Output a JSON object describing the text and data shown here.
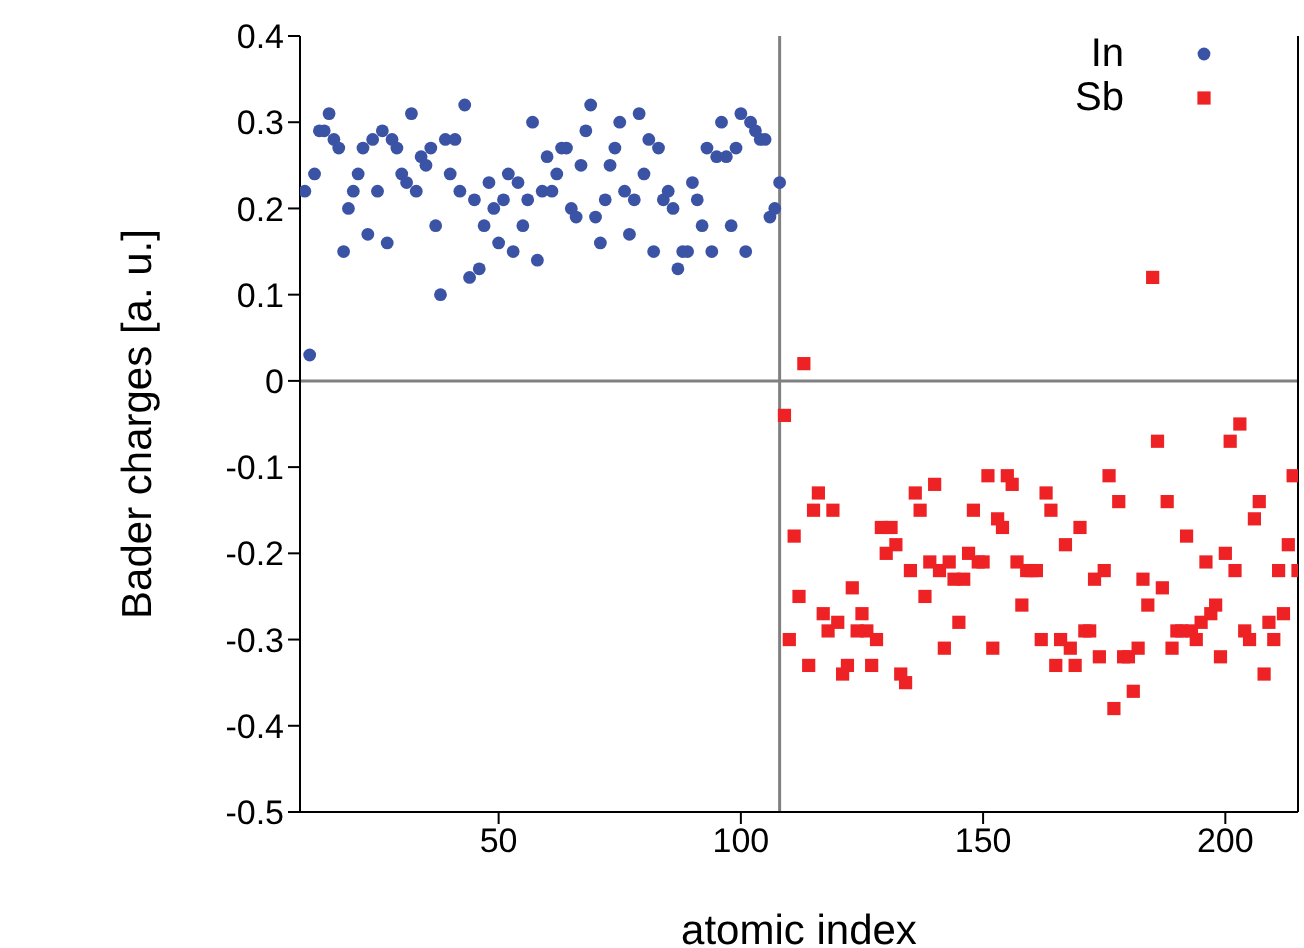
{
  "chart_data": {
    "type": "scatter",
    "xlabel": "atomic index",
    "ylabel": "Bader charges [a. u.]",
    "xlim": [
      9,
      215
    ],
    "xticks": [
      50,
      100,
      150,
      200
    ],
    "ylim": [
      -0.5,
      0.4
    ],
    "yticks": [
      -0.5,
      -0.4,
      -0.3,
      -0.2,
      -0.1,
      0,
      0.1,
      0.2,
      0.3,
      0.4
    ],
    "grid": false,
    "legend": "top right",
    "ref_lines": [
      {
        "axis": "x",
        "value": 108,
        "color": "#808080"
      },
      {
        "axis": "y",
        "value": 0,
        "color": "#808080"
      }
    ],
    "series": [
      {
        "name": "In",
        "color": "#3a53a4",
        "marker": "circle",
        "x": [
          10,
          11,
          12,
          13,
          14,
          15,
          16,
          17,
          18,
          19,
          20,
          21,
          22,
          23,
          24,
          25,
          26,
          27,
          28,
          29,
          30,
          31,
          32,
          33,
          34,
          35,
          36,
          37,
          38,
          39,
          40,
          41,
          42,
          43,
          44,
          45,
          46,
          47,
          48,
          49,
          50,
          51,
          52,
          53,
          54,
          55,
          56,
          57,
          58,
          59,
          60,
          61,
          62,
          63,
          64,
          65,
          66,
          67,
          68,
          69,
          70,
          71,
          72,
          73,
          74,
          75,
          76,
          77,
          78,
          79,
          80,
          81,
          82,
          83,
          84,
          85,
          86,
          87,
          88,
          89,
          90,
          91,
          92,
          93,
          94,
          95,
          96,
          97,
          98,
          99,
          100,
          101,
          102,
          103,
          104,
          105,
          106,
          107,
          108
        ],
        "values": [
          0.22,
          0.03,
          0.24,
          0.29,
          0.29,
          0.31,
          0.28,
          0.27,
          0.15,
          0.2,
          0.22,
          0.24,
          0.27,
          0.17,
          0.28,
          0.22,
          0.29,
          0.16,
          0.28,
          0.27,
          0.24,
          0.23,
          0.31,
          0.22,
          0.26,
          0.25,
          0.27,
          0.18,
          0.1,
          0.28,
          0.24,
          0.28,
          0.22,
          0.32,
          0.12,
          0.21,
          0.13,
          0.18,
          0.23,
          0.2,
          0.16,
          0.21,
          0.24,
          0.15,
          0.23,
          0.18,
          0.21,
          0.3,
          0.14,
          0.22,
          0.26,
          0.22,
          0.24,
          0.27,
          0.27,
          0.2,
          0.19,
          0.25,
          0.29,
          0.32,
          0.19,
          0.16,
          0.21,
          0.25,
          0.27,
          0.3,
          0.22,
          0.17,
          0.21,
          0.31,
          0.24,
          0.28,
          0.15,
          0.27,
          0.21,
          0.22,
          0.2,
          0.13,
          0.15,
          0.15,
          0.23,
          0.21,
          0.18,
          0.27,
          0.15,
          0.26,
          0.3,
          0.26,
          0.18,
          0.27,
          0.31,
          0.15,
          0.3,
          0.29,
          0.28,
          0.28,
          0.19,
          0.2,
          0.23
        ]
      },
      {
        "name": "Sb",
        "color": "#ee2224",
        "marker": "square",
        "x": [
          109,
          110,
          111,
          112,
          113,
          114,
          115,
          116,
          117,
          118,
          119,
          120,
          121,
          122,
          123,
          124,
          125,
          126,
          127,
          128,
          129,
          130,
          131,
          132,
          133,
          134,
          135,
          136,
          137,
          138,
          139,
          140,
          141,
          142,
          143,
          144,
          145,
          146,
          147,
          148,
          149,
          150,
          151,
          152,
          153,
          154,
          155,
          156,
          157,
          158,
          159,
          160,
          161,
          162,
          163,
          164,
          165,
          166,
          167,
          168,
          169,
          170,
          171,
          172,
          173,
          174,
          175,
          176,
          177,
          178,
          179,
          180,
          181,
          182,
          183,
          184,
          185,
          186,
          187,
          188,
          189,
          190,
          191,
          192,
          193,
          194,
          195,
          196,
          197,
          198,
          199,
          200,
          201,
          202,
          203,
          204,
          205,
          206,
          207,
          208,
          209,
          210,
          211,
          212,
          213,
          214,
          215
        ],
        "values": [
          -0.04,
          -0.3,
          -0.18,
          -0.25,
          0.02,
          -0.33,
          -0.15,
          -0.13,
          -0.27,
          -0.29,
          -0.15,
          -0.28,
          -0.34,
          -0.33,
          -0.24,
          -0.29,
          -0.27,
          -0.29,
          -0.33,
          -0.3,
          -0.17,
          -0.2,
          -0.17,
          -0.19,
          -0.34,
          -0.35,
          -0.22,
          -0.13,
          -0.15,
          -0.25,
          -0.21,
          -0.12,
          -0.22,
          -0.31,
          -0.21,
          -0.23,
          -0.28,
          -0.23,
          -0.2,
          -0.15,
          -0.21,
          -0.21,
          -0.11,
          -0.31,
          -0.16,
          -0.17,
          -0.11,
          -0.12,
          -0.21,
          -0.26,
          -0.22,
          -0.22,
          -0.22,
          -0.3,
          -0.13,
          -0.15,
          -0.33,
          -0.3,
          -0.19,
          -0.31,
          -0.33,
          -0.17,
          -0.29,
          -0.29,
          -0.23,
          -0.32,
          -0.22,
          -0.11,
          -0.38,
          -0.14,
          -0.32,
          -0.32,
          -0.36,
          -0.31,
          -0.23,
          -0.26,
          0.12,
          -0.07,
          -0.24,
          -0.14,
          -0.31,
          -0.29,
          -0.29,
          -0.18,
          -0.29,
          -0.3,
          -0.28,
          -0.21,
          -0.27,
          -0.26,
          -0.32,
          -0.2,
          -0.07,
          -0.22,
          -0.05,
          -0.29,
          -0.3,
          -0.16,
          -0.14,
          -0.34,
          -0.28,
          -0.3,
          -0.22,
          -0.27,
          -0.19,
          -0.11,
          -0.22
        ]
      }
    ]
  }
}
